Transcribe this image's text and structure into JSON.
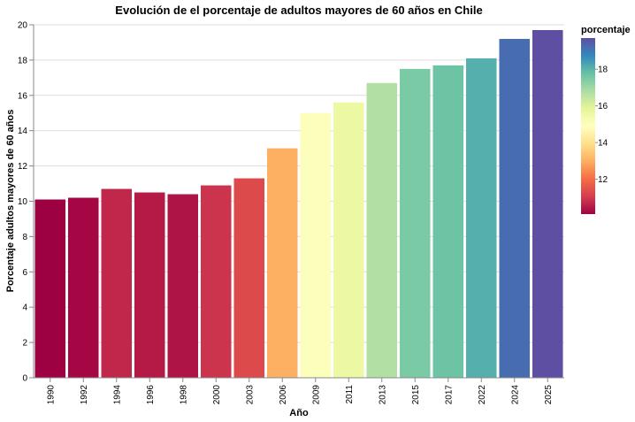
{
  "chart_data": {
    "type": "bar",
    "title": "Evolución de el porcentaje de adultos mayores de 60 años en Chile",
    "xlabel": "Año",
    "ylabel": "Porcentaje adultos mayores de 60 años",
    "categories": [
      "1990",
      "1992",
      "1994",
      "1996",
      "1998",
      "2000",
      "2003",
      "2006",
      "2009",
      "2011",
      "2013",
      "2015",
      "2017",
      "2022",
      "2024",
      "2025"
    ],
    "values": [
      10.1,
      10.2,
      10.7,
      10.5,
      10.4,
      10.9,
      11.3,
      13.0,
      15.0,
      15.6,
      16.7,
      17.5,
      17.7,
      18.1,
      19.2,
      19.7
    ],
    "ylim": [
      0,
      20
    ],
    "yticks": [
      0,
      2,
      4,
      6,
      8,
      10,
      12,
      14,
      16,
      18,
      20
    ],
    "grid": true,
    "color_scheme": "spectral",
    "legend": {
      "title": "porcentaje",
      "position": "right",
      "ticks": [
        12,
        14,
        16,
        18
      ],
      "domain": [
        10.1,
        19.7
      ]
    }
  }
}
